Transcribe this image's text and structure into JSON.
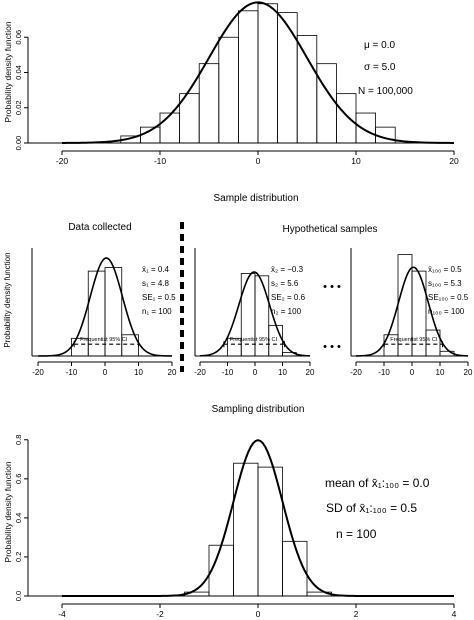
{
  "chart_data": [
    {
      "id": "population",
      "type": "histogram",
      "ylabel": "Probability density function",
      "x_ticks": [
        -20,
        -10,
        0,
        10,
        20
      ],
      "y_ticks": [
        "0.00",
        "0.02",
        "0.04",
        "0.06"
      ],
      "xlim": [
        -20,
        20
      ],
      "ylim": [
        0,
        0.08
      ],
      "bins": {
        "edges": [
          -14,
          -12,
          -10,
          -8,
          -6,
          -4,
          -2,
          0,
          2,
          4,
          6,
          8,
          10,
          12,
          14
        ],
        "density": [
          0.004,
          0.009,
          0.017,
          0.028,
          0.045,
          0.06,
          0.075,
          0.079,
          0.074,
          0.061,
          0.045,
          0.028,
          0.017,
          0.009
        ]
      },
      "curve": {
        "mean": 0.0,
        "sd": 5.0
      },
      "annotations": [
        "μ = 0.0",
        "σ = 5.0",
        "N = 100,000"
      ]
    },
    {
      "id": "sample-1",
      "type": "histogram",
      "title": "Data collected",
      "ylabel": "Probability density function",
      "x_ticks": [
        -20,
        -10,
        0,
        10,
        20
      ],
      "xlim": [
        -20,
        20
      ],
      "bins": {
        "edges": [
          -10,
          -5,
          0,
          5,
          10
        ],
        "density": [
          0.015,
          0.072,
          0.075,
          0.018
        ]
      },
      "curve": {
        "mean": 0.4,
        "sd": 4.8
      },
      "ci": {
        "label": "Frequentist 95% CI",
        "low": -9.2,
        "high": 10.0,
        "level": 0.01
      },
      "annotations": [
        "x̄₁ = 0.4",
        "s₁ = 4.8",
        "SE₁ = 0.5",
        "n₁ = 100"
      ]
    },
    {
      "id": "sample-2",
      "type": "histogram",
      "ylabel": "",
      "x_ticks": [
        -20,
        -10,
        0,
        10,
        20
      ],
      "xlim": [
        -20,
        20
      ],
      "bins": {
        "edges": [
          -10,
          -5,
          0,
          5,
          10,
          15
        ],
        "density": [
          0.015,
          0.07,
          0.068,
          0.026,
          0.003
        ]
      },
      "curve": {
        "mean": -0.3,
        "sd": 5.6
      },
      "ci": {
        "label": "Frequentist 95% CI",
        "low": -11.3,
        "high": 10.7,
        "level": 0.01
      },
      "annotations": [
        "x̄₂ = −0.3",
        "s₂ = 5.6",
        "SE₂ = 0.6",
        "n₂ = 100"
      ]
    },
    {
      "id": "sample-100",
      "type": "histogram",
      "ylabel": "",
      "x_ticks": [
        -20,
        -10,
        0,
        10,
        20
      ],
      "xlim": [
        -20,
        20
      ],
      "bins": {
        "edges": [
          -10,
          -5,
          0,
          5,
          10,
          15
        ],
        "density": [
          0.018,
          0.086,
          0.072,
          0.022,
          0.004
        ]
      },
      "curve": {
        "mean": 0.5,
        "sd": 5.3
      },
      "ci": {
        "label": "Frequentist 95% CI",
        "low": -9.9,
        "high": 10.9,
        "level": 0.01
      },
      "annotations": [
        "x̄₁₀₀ = 0.5",
        "s₁₀₀ = 5.3",
        "SE₁₀₀ = 0.5",
        "n₁₀₀ = 100"
      ]
    },
    {
      "id": "sampling-distribution",
      "type": "histogram",
      "title": "Sampling distribution",
      "ylabel": "Probability density function",
      "x_ticks": [
        -4,
        -2,
        0,
        2,
        4
      ],
      "y_ticks": [
        "0.0",
        "0.2",
        "0.4",
        "0.6",
        "0.8"
      ],
      "xlim": [
        -4,
        4
      ],
      "ylim": [
        0,
        0.85
      ],
      "bins": {
        "edges": [
          -1.5,
          -1.0,
          -0.5,
          0.0,
          0.5,
          1.0,
          1.5
        ],
        "density": [
          0.02,
          0.26,
          0.68,
          0.66,
          0.28,
          0.02
        ]
      },
      "curve": {
        "mean": 0.0,
        "sd": 0.5
      },
      "annotations": [
        "mean of  x̄₁:₁₀₀ = 0.0",
        "SD of  x̄₁:₁₀₀ = 0.5",
        "n = 100"
      ]
    }
  ],
  "section_titles": {
    "sample_distribution": "Sample distribution",
    "hypothetical_samples": "Hypothetical samples",
    "ellipsis": "• • •"
  }
}
